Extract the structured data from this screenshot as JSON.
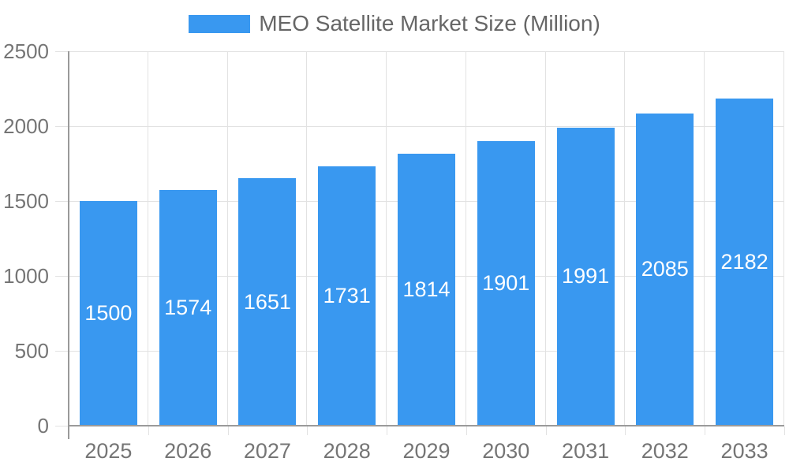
{
  "legend": {
    "label": "MEO Satellite Market Size (Million)"
  },
  "chart_data": {
    "type": "bar",
    "title": "MEO Satellite Market Size (Million)",
    "categories": [
      "2025",
      "2026",
      "2027",
      "2028",
      "2029",
      "2030",
      "2031",
      "2032",
      "2033"
    ],
    "values": [
      1500,
      1574,
      1651,
      1731,
      1814,
      1901,
      1991,
      2085,
      2182
    ],
    "series": [
      {
        "name": "MEO Satellite Market Size (Million)",
        "values": [
          1500,
          1574,
          1651,
          1731,
          1814,
          1901,
          1991,
          2085,
          2182
        ]
      }
    ],
    "xlabel": "",
    "ylabel": "",
    "ylim": [
      0,
      2500
    ],
    "yticks": [
      0,
      500,
      1000,
      1500,
      2000,
      2500
    ],
    "grid": true,
    "legend_position": "top",
    "bar_color": "#3998f0",
    "value_label_color": "#ffffff",
    "gridline_color": "#e2e2e2",
    "axis_line_color": "#9a9a9a",
    "tick_label_color": "#757575",
    "legend_text_color": "#666666"
  }
}
